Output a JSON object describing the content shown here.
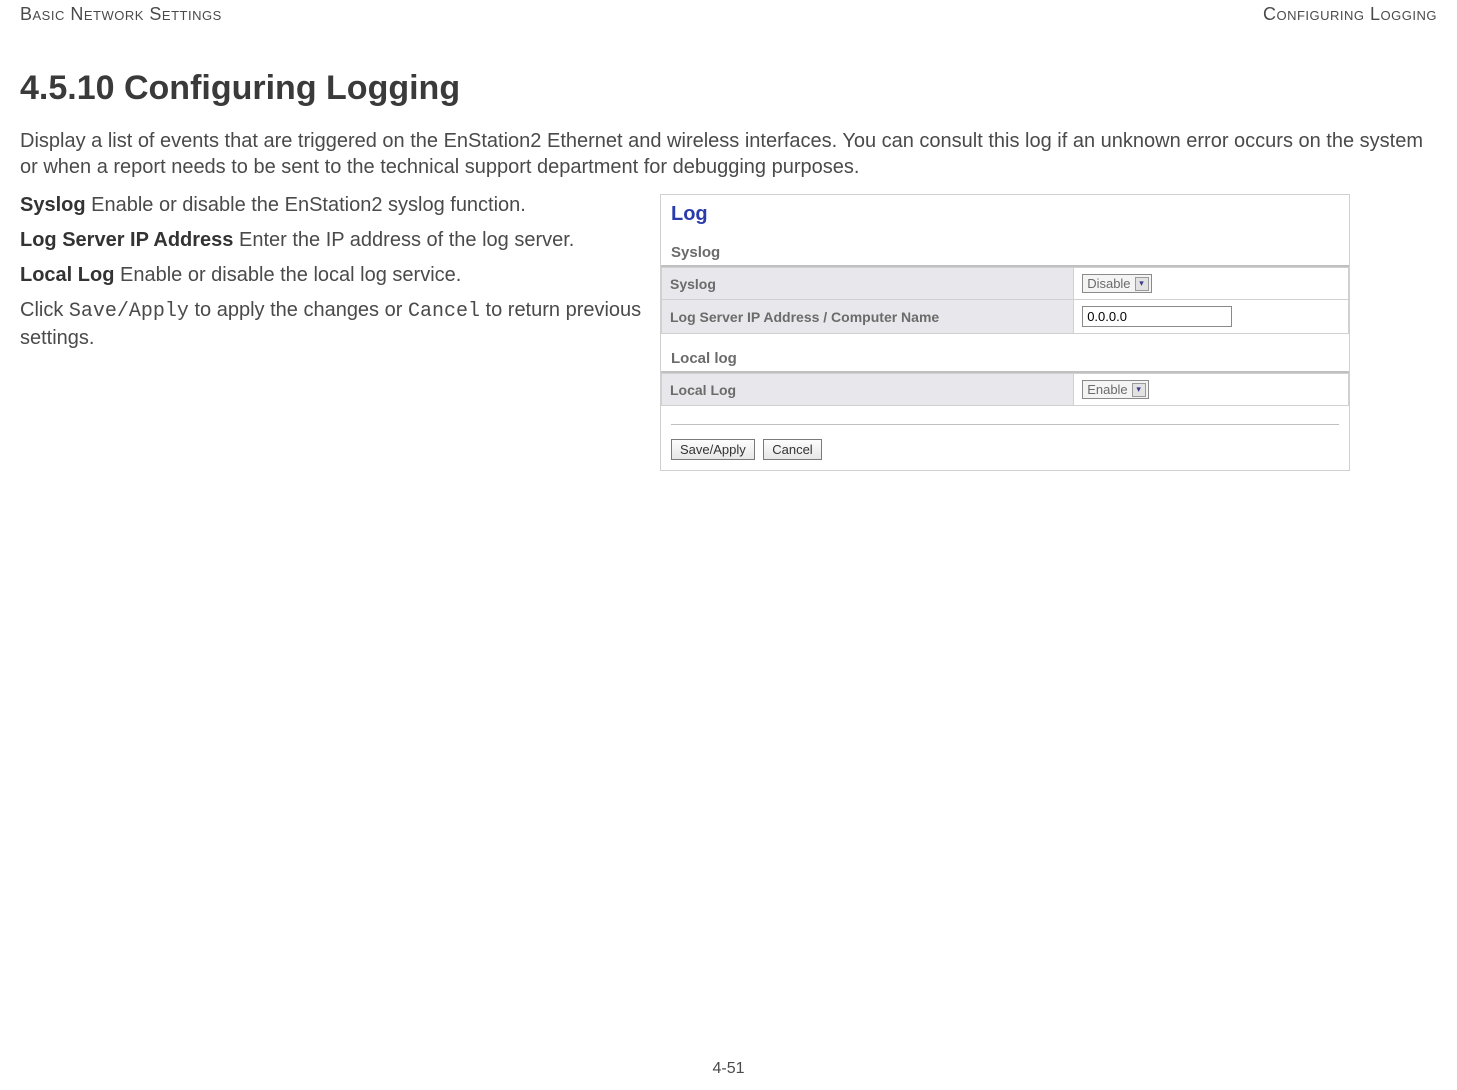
{
  "header": {
    "left": "Basic Network Settings",
    "right": "Configuring Logging"
  },
  "section_title": "4.5.10 Configuring Logging",
  "intro": "Display a list of events that are triggered on the EnStation2 Ethernet and wireless interfaces. You can consult this log if an unknown error occurs on the system or when a report needs to be sent to the technical support department for debugging purposes.",
  "defs": {
    "syslog_term": "Syslog",
    "syslog_desc": "  Enable or disable the EnStation2 syslog function.",
    "logip_term": "Log Server IP Address",
    "logip_desc": "  Enter the IP address of the log server.",
    "locallog_term": "Local Log",
    "locallog_desc": "  Enable or disable the local log service.",
    "click_pre": "Click ",
    "save_apply_mono": "Save/Apply",
    "click_mid": " to apply the changes or ",
    "cancel_mono": "Cancel",
    "click_post": " to return previous settings."
  },
  "screenshot": {
    "title": "Log",
    "syslog_section": "Syslog",
    "syslog_row_label": "Syslog",
    "syslog_row_value": "Disable",
    "logip_row_label": "Log Server IP Address / Computer Name",
    "logip_row_value": "0.0.0.0",
    "locallog_section": "Local log",
    "locallog_row_label": "Local Log",
    "locallog_row_value": "Enable",
    "btn_save": "Save/Apply",
    "btn_cancel": "Cancel"
  },
  "page_number": "4-51"
}
